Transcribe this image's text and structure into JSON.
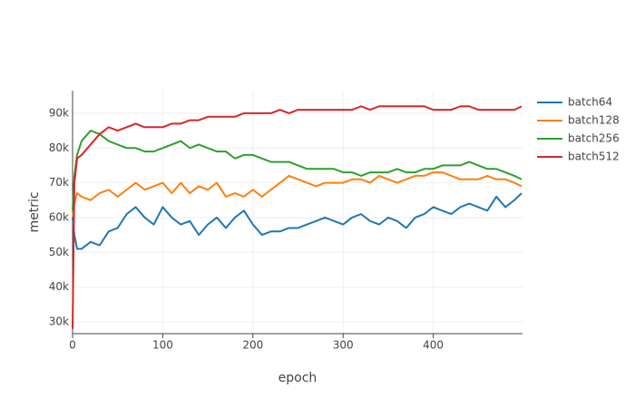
{
  "chart_data": {
    "type": "line",
    "x_label": "epoch",
    "y_label": "metric",
    "x": [
      0,
      2,
      5,
      10,
      20,
      30,
      40,
      50,
      60,
      70,
      80,
      90,
      100,
      110,
      120,
      130,
      140,
      150,
      160,
      170,
      180,
      190,
      200,
      210,
      220,
      230,
      240,
      250,
      260,
      270,
      280,
      290,
      300,
      310,
      320,
      330,
      340,
      350,
      360,
      370,
      380,
      390,
      400,
      410,
      420,
      430,
      440,
      450,
      460,
      470,
      480,
      490,
      498
    ],
    "xlim": [
      0,
      499
    ],
    "xticks": [
      0,
      100,
      200,
      300,
      400
    ],
    "ylim": [
      26600,
      96500
    ],
    "yticks": [
      {
        "value": 30000,
        "label": "30k"
      },
      {
        "value": 40000,
        "label": "40k"
      },
      {
        "value": 50000,
        "label": "50k"
      },
      {
        "value": 60000,
        "label": "60k"
      },
      {
        "value": 70000,
        "label": "70k"
      },
      {
        "value": 80000,
        "label": "80k"
      },
      {
        "value": 90000,
        "label": "90k"
      }
    ],
    "grid": true,
    "legend": "right",
    "series": [
      {
        "name": "batch64",
        "color": "#1f77b4",
        "values": [
          60000,
          55000,
          51000,
          51000,
          53000,
          52000,
          56000,
          57000,
          61000,
          63000,
          60000,
          58000,
          63000,
          60000,
          58000,
          59000,
          55000,
          58000,
          60000,
          57000,
          60000,
          62000,
          58000,
          55000,
          56000,
          56000,
          57000,
          57000,
          58000,
          59000,
          60000,
          59000,
          58000,
          60000,
          61000,
          59000,
          58000,
          60000,
          59000,
          57000,
          60000,
          61000,
          63000,
          62000,
          61000,
          63000,
          64000,
          63000,
          62000,
          66000,
          63000,
          65000,
          67000
        ]
      },
      {
        "name": "batch128",
        "color": "#ff7f0e",
        "values": [
          60000,
          64000,
          67000,
          66000,
          65000,
          67000,
          68000,
          66000,
          68000,
          70000,
          68000,
          69000,
          70000,
          67000,
          70000,
          67000,
          69000,
          68000,
          70000,
          66000,
          67000,
          66000,
          68000,
          66000,
          68000,
          70000,
          72000,
          71000,
          70000,
          69000,
          70000,
          70000,
          70000,
          71000,
          71000,
          70000,
          72000,
          71000,
          70000,
          71000,
          72000,
          72000,
          73000,
          73000,
          72000,
          71000,
          71000,
          71000,
          72000,
          71000,
          71000,
          70000,
          69000
        ]
      },
      {
        "name": "batch256",
        "color": "#2ca02c",
        "values": [
          62000,
          72000,
          78000,
          82000,
          85000,
          84000,
          82000,
          81000,
          80000,
          80000,
          79000,
          79000,
          80000,
          81000,
          82000,
          80000,
          81000,
          80000,
          79000,
          79000,
          77000,
          78000,
          78000,
          77000,
          76000,
          76000,
          76000,
          75000,
          74000,
          74000,
          74000,
          74000,
          73000,
          73000,
          72000,
          73000,
          73000,
          73000,
          74000,
          73000,
          73000,
          74000,
          74000,
          75000,
          75000,
          75000,
          76000,
          75000,
          74000,
          74000,
          73000,
          72000,
          71000
        ]
      },
      {
        "name": "batch512",
        "color": "#d62728",
        "values": [
          28000,
          70000,
          77000,
          78000,
          81000,
          84000,
          86000,
          85000,
          86000,
          87000,
          86000,
          86000,
          86000,
          87000,
          87000,
          88000,
          88000,
          89000,
          89000,
          89000,
          89000,
          90000,
          90000,
          90000,
          90000,
          91000,
          90000,
          91000,
          91000,
          91000,
          91000,
          91000,
          91000,
          91000,
          92000,
          91000,
          92000,
          92000,
          92000,
          92000,
          92000,
          92000,
          91000,
          91000,
          91000,
          92000,
          92000,
          91000,
          91000,
          91000,
          91000,
          91000,
          92000
        ]
      }
    ]
  }
}
